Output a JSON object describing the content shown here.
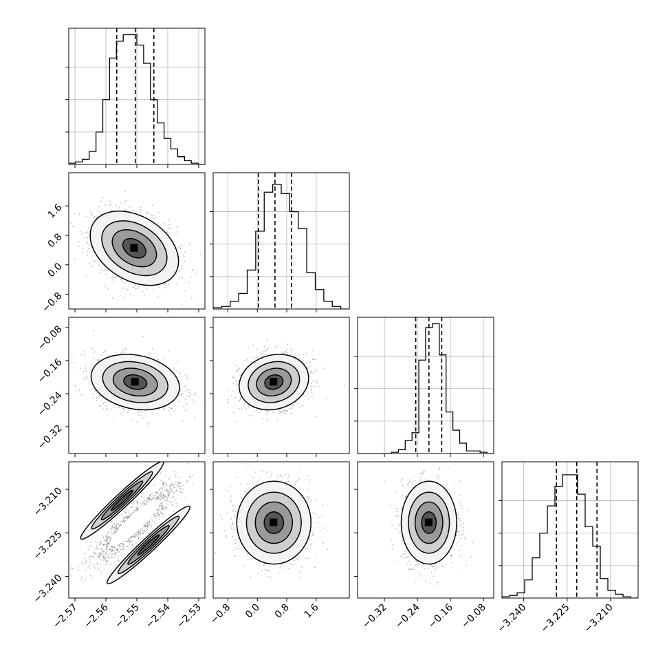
{
  "chart_data": {
    "type": "corner",
    "grid": true,
    "parameters": [
      {
        "ticks": [
          -2.57,
          -2.56,
          -2.55,
          -2.54,
          -2.53
        ],
        "tick_labels": [
          "−2.57",
          "−2.56",
          "−2.55",
          "−2.54",
          "−2.53"
        ],
        "range": [
          -2.572,
          -2.528
        ],
        "quantiles": [
          -2.5565,
          -2.5505,
          -2.5445
        ],
        "histogram": [
          1,
          2,
          4,
          10,
          25,
          50,
          82,
          95,
          100,
          100,
          92,
          78,
          50,
          32,
          20,
          12,
          6,
          3,
          1,
          0
        ]
      },
      {
        "ticks": [
          -0.8,
          0.0,
          0.8,
          1.6
        ],
        "tick_labels": [
          "−0.8",
          "0.0",
          "0.8",
          "1.6"
        ],
        "range": [
          -1.2,
          2.5
        ],
        "quantiles": [
          0.03,
          0.48,
          0.93
        ],
        "histogram": [
          1,
          2,
          6,
          12,
          30,
          60,
          90,
          96,
          89,
          75,
          62,
          28,
          15,
          6,
          2,
          0
        ]
      },
      {
        "ticks": [
          -0.32,
          -0.24,
          -0.16,
          -0.08
        ],
        "tick_labels": [
          "−0.32",
          "−0.24",
          "−0.16",
          "−0.08"
        ],
        "range": [
          -0.385,
          -0.055
        ],
        "quantiles": [
          -0.244,
          -0.212,
          -0.181
        ],
        "histogram": [
          0,
          0,
          0,
          0,
          0,
          1,
          3,
          10,
          16,
          72,
          97,
          100,
          76,
          32,
          18,
          8,
          2,
          2,
          1,
          0
        ]
      },
      {
        "ticks": [
          -3.24,
          -3.225,
          -3.21
        ],
        "tick_labels": [
          "−3.240",
          "−3.225",
          "−3.210"
        ],
        "range": [
          -3.2475,
          -3.2005
        ],
        "quantiles": [
          -3.2287,
          -3.2217,
          -3.2147
        ],
        "histogram": [
          1,
          2,
          4,
          14,
          31,
          50,
          71,
          86,
          95,
          95,
          80,
          55,
          40,
          15,
          6,
          3,
          1,
          0
        ]
      }
    ],
    "pairs": [
      {
        "row": 1,
        "col": 0,
        "mean": [
          -2.5508,
          0.45
        ],
        "sd": [
          0.0068,
          0.48
        ],
        "rho": -0.35
      },
      {
        "row": 2,
        "col": 0,
        "mean": [
          -2.5505,
          -0.212
        ],
        "sd": [
          0.0068,
          0.032
        ],
        "rho": -0.2
      },
      {
        "row": 2,
        "col": 1,
        "mean": [
          0.45,
          -0.212
        ],
        "sd": [
          0.45,
          0.032
        ],
        "rho": 0.15
      },
      {
        "row": 3,
        "col": 0,
        "mean": [
          -2.5505,
          -3.2215
        ],
        "sd": [
          0.0068,
          0.0068
        ],
        "rho": 0.9,
        "bimodal": true
      },
      {
        "row": 3,
        "col": 1,
        "mean": [
          0.45,
          -3.2215
        ],
        "sd": [
          0.48,
          0.0068
        ],
        "rho": 0.0
      },
      {
        "row": 3,
        "col": 2,
        "mean": [
          -0.212,
          -3.2215
        ],
        "sd": [
          0.032,
          0.0068
        ],
        "rho": 0.0
      }
    ]
  }
}
